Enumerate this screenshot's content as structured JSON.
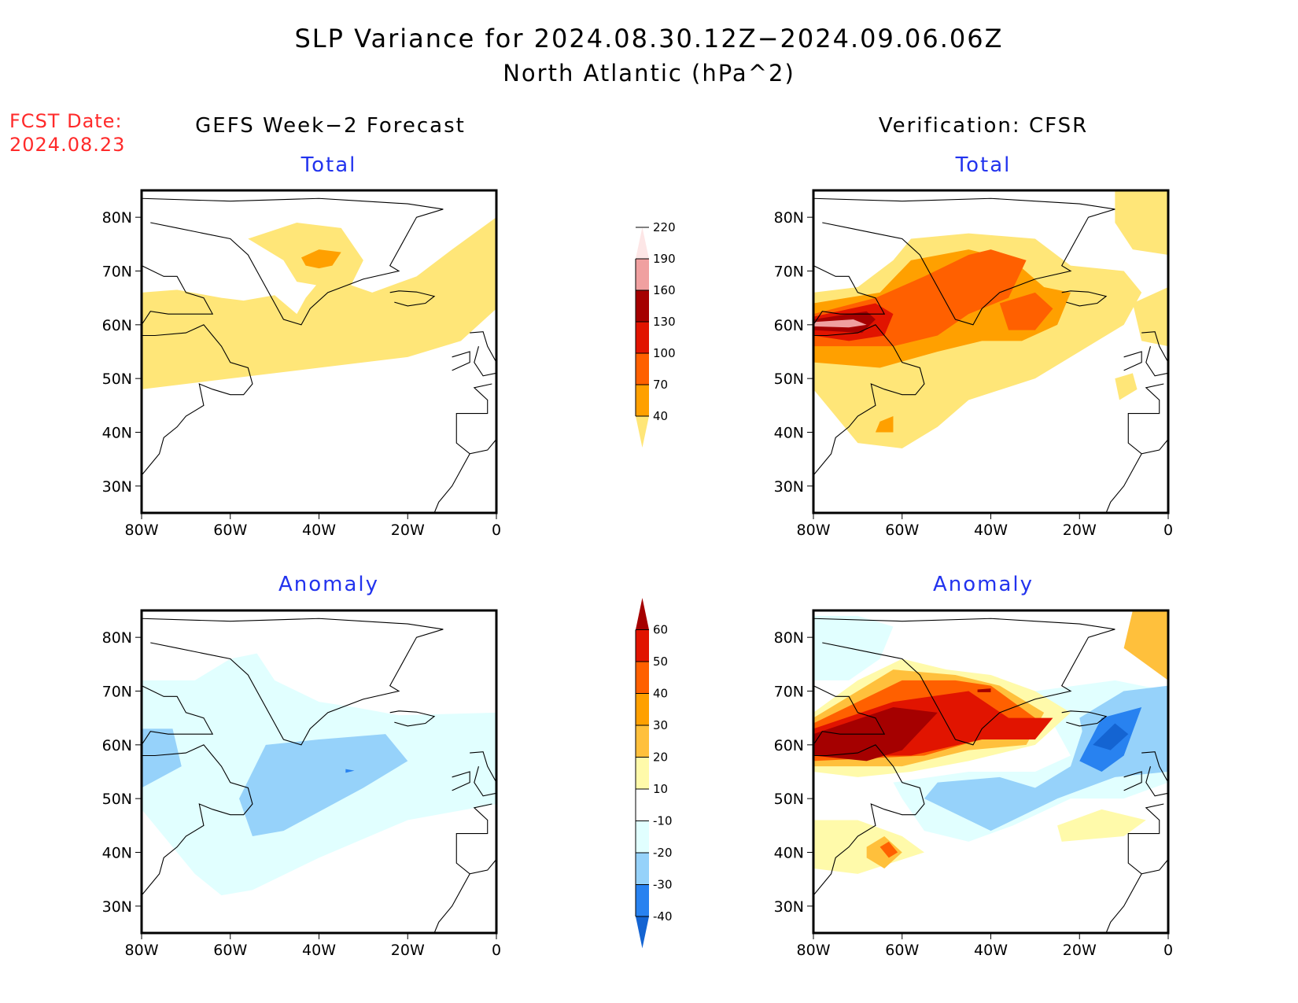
{
  "header": {
    "title": "SLP Variance for 2024.08.30.12Z−2024.09.06.06Z",
    "subtitle": "North Atlantic (hPa^2)",
    "fcst_label": "FCST Date:",
    "fcst_date": "2024.08.23"
  },
  "columns": {
    "left": "GEFS Week−2 Forecast",
    "right": "Verification: CFSR"
  },
  "panels": {
    "total": "Total",
    "anomaly": "Anomaly"
  },
  "chart_data": [
    {
      "type": "heatmap",
      "title": "GEFS Week-2 Forecast — Total",
      "xlabel": "",
      "ylabel": "",
      "xlim": [
        -80,
        0
      ],
      "ylim": [
        25,
        85
      ],
      "x_ticks": [
        "80W",
        "60W",
        "40W",
        "20W",
        "0"
      ],
      "y_ticks": [
        "30N",
        "40N",
        "50N",
        "60N",
        "70N",
        "80N"
      ],
      "features": [
        {
          "level": "40-70",
          "desc": "broad band from Labrador (48-66N at 80W) to NE Atlantic (63-79N at 0), plus ring over central Greenland"
        },
        {
          "level": "70-100",
          "desc": "small maximum over central Greenland near 40W, 73N"
        }
      ]
    },
    {
      "type": "heatmap",
      "title": "Verification: CFSR — Total",
      "xlim": [
        -80,
        0
      ],
      "ylim": [
        25,
        85
      ],
      "x_ticks": [
        "80W",
        "60W",
        "40W",
        "20W",
        "0"
      ],
      "y_ticks": [
        "30N",
        "40N",
        "50N",
        "60N",
        "70N",
        "80N"
      ],
      "features": [
        {
          "level": ">190",
          "desc": "maximum over Hudson Strait / Labrador near 72W, 60N"
        },
        {
          "level": "160-190",
          "desc": "surrounding core 80W-62W, 57-63N"
        },
        {
          "level": "100-130",
          "desc": "Davis Strait to E Greenland 58-72N; Denmark Strait area 30W, 62N"
        },
        {
          "level": "40-70",
          "desc": "broad envelope 37-78N from 80W to 10W; patches near 0, 60-75N"
        }
      ]
    },
    {
      "type": "heatmap",
      "title": "GEFS Week-2 Forecast — Anomaly",
      "xlim": [
        -80,
        0
      ],
      "ylim": [
        25,
        85
      ],
      "x_ticks": [
        "80W",
        "60W",
        "40W",
        "20W",
        "0"
      ],
      "y_ticks": [
        "30N",
        "40N",
        "50N",
        "60N",
        "70N",
        "80N"
      ],
      "features": [
        {
          "level": "-10 to -20",
          "desc": "broad negative band 33-72N across basin"
        },
        {
          "level": "-20 to -30",
          "desc": "Newfoundland to 20W, 43-61N; Hudson Bay 52-62N"
        },
        {
          "level": "-30 to -40",
          "desc": "tiny spot near 33W, 55N"
        }
      ]
    },
    {
      "type": "heatmap",
      "title": "Verification: CFSR — Anomaly",
      "xlim": [
        -80,
        0
      ],
      "ylim": [
        25,
        85
      ],
      "x_ticks": [
        "80W",
        "60W",
        "40W",
        "20W",
        "0"
      ],
      "y_ticks": [
        "30N",
        "40N",
        "50N",
        "60N",
        "70N",
        "80N"
      ],
      "features": [
        {
          "level": ">60",
          "desc": "Labrador Sea / Hudson Strait 80W-58W, 57-65N; spots near 42W 70N and 30W 65N"
        },
        {
          "level": "40-60",
          "desc": "E Greenland coast 48-40W, 63-71N; Denmark Strait"
        },
        {
          "level": "-30 to -40",
          "desc": "south and east of Iceland, 22-12W, 55-66N"
        },
        {
          "level": "-20 to -30",
          "desc": "band 53-46N from Newfoundland to Iceland"
        },
        {
          "level": "30-50",
          "desc": "spot off US East coast near 65W, 40N"
        }
      ]
    }
  ],
  "colorbars": {
    "total": {
      "levels": [
        "40",
        "70",
        "100",
        "130",
        "160",
        "190",
        "220"
      ],
      "colors": [
        "#ffe678",
        "#ffa000",
        "#ff6000",
        "#e11400",
        "#a50000",
        "#f0a0a0",
        "#fde6e6"
      ]
    },
    "anomaly": {
      "levels": [
        "-40",
        "-30",
        "-20",
        "-10",
        "10",
        "20",
        "30",
        "40",
        "50",
        "60"
      ],
      "colors": [
        "#1464d2",
        "#2882f0",
        "#96d2fa",
        "#e1ffff",
        "#ffffff",
        "#fffaaa",
        "#ffc03c",
        "#ffa000",
        "#ff6000",
        "#e11400",
        "#a50000"
      ]
    }
  }
}
